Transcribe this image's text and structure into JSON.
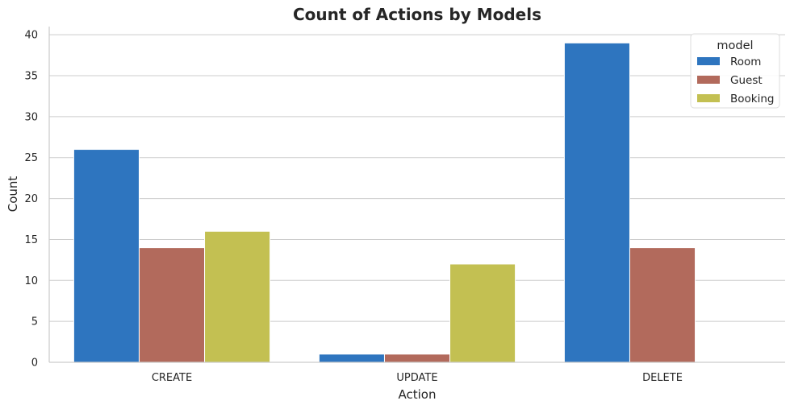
{
  "chart_data": {
    "type": "bar",
    "title": "Count of Actions by Models",
    "xlabel": "Action",
    "ylabel": "Count",
    "categories": [
      "CREATE",
      "UPDATE",
      "DELETE"
    ],
    "series": [
      {
        "name": "Room",
        "values": [
          26,
          1,
          39
        ],
        "color": "#2e75bf"
      },
      {
        "name": "Guest",
        "values": [
          14,
          1,
          14
        ],
        "color": "#b26a5c"
      },
      {
        "name": "Booking",
        "values": [
          16,
          12,
          0
        ],
        "color": "#c3c052"
      }
    ],
    "ylim": [
      0,
      41
    ],
    "yticks": [
      0,
      5,
      10,
      15,
      20,
      25,
      30,
      35,
      40
    ],
    "grid": true,
    "legend": {
      "title": "model",
      "placement": "top-right"
    }
  }
}
